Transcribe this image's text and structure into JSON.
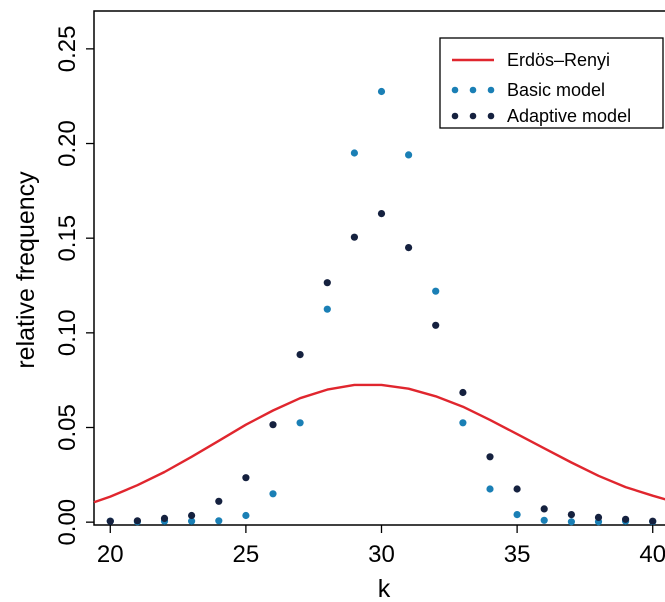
{
  "chart_data": {
    "type": "line",
    "title": "",
    "xlabel": "k",
    "ylabel": "relative frequency",
    "xlim": [
      19.4,
      40.6
    ],
    "ylim": [
      -0.0015,
      0.27
    ],
    "xticks": [
      20,
      25,
      30,
      35,
      40
    ],
    "yticks": [
      0.0,
      0.05,
      0.1,
      0.15,
      0.2,
      0.25
    ],
    "ytick_labels": [
      "0.00",
      "0.05",
      "0.10",
      "0.15",
      "0.20",
      "0.25"
    ],
    "grid": false,
    "legend": "top-right",
    "series": [
      {
        "name": "Erdös–Renyi",
        "kind": "line",
        "color": "#e0262e",
        "x": [
          19.4,
          20,
          21,
          22,
          23,
          24,
          25,
          26,
          27,
          28,
          29,
          30,
          31,
          32,
          33,
          34,
          35,
          36,
          37,
          38,
          39,
          40,
          40.6
        ],
        "y": [
          0.0105,
          0.0135,
          0.0195,
          0.0265,
          0.0345,
          0.043,
          0.0515,
          0.059,
          0.0655,
          0.07,
          0.0725,
          0.0725,
          0.0705,
          0.0665,
          0.061,
          0.054,
          0.0465,
          0.039,
          0.0315,
          0.0245,
          0.0185,
          0.014,
          0.0115
        ]
      },
      {
        "name": "Basic model",
        "kind": "points",
        "color": "#1a7fb5",
        "x": [
          20,
          21,
          22,
          23,
          24,
          25,
          26,
          27,
          28,
          29,
          30,
          31,
          32,
          33,
          34,
          35,
          36,
          37,
          38,
          39,
          40
        ],
        "y": [
          0.0005,
          0.0002,
          0.0005,
          0.0005,
          0.0007,
          0.0035,
          0.015,
          0.0525,
          0.1125,
          0.195,
          0.2275,
          0.194,
          0.122,
          0.0525,
          0.0175,
          0.004,
          0.001,
          0.0002,
          0.0002,
          0.0005,
          0.0002
        ]
      },
      {
        "name": "Adaptive model",
        "kind": "points",
        "color": "#15213f",
        "x": [
          20,
          21,
          22,
          23,
          24,
          25,
          26,
          27,
          28,
          29,
          30,
          31,
          32,
          33,
          34,
          35,
          36,
          37,
          38,
          39,
          40
        ],
        "y": [
          0.0005,
          0.0007,
          0.002,
          0.0035,
          0.011,
          0.0235,
          0.0515,
          0.0885,
          0.1265,
          0.1505,
          0.163,
          0.145,
          0.104,
          0.0685,
          0.0345,
          0.0175,
          0.007,
          0.004,
          0.0025,
          0.0015,
          0.0005
        ]
      }
    ]
  }
}
